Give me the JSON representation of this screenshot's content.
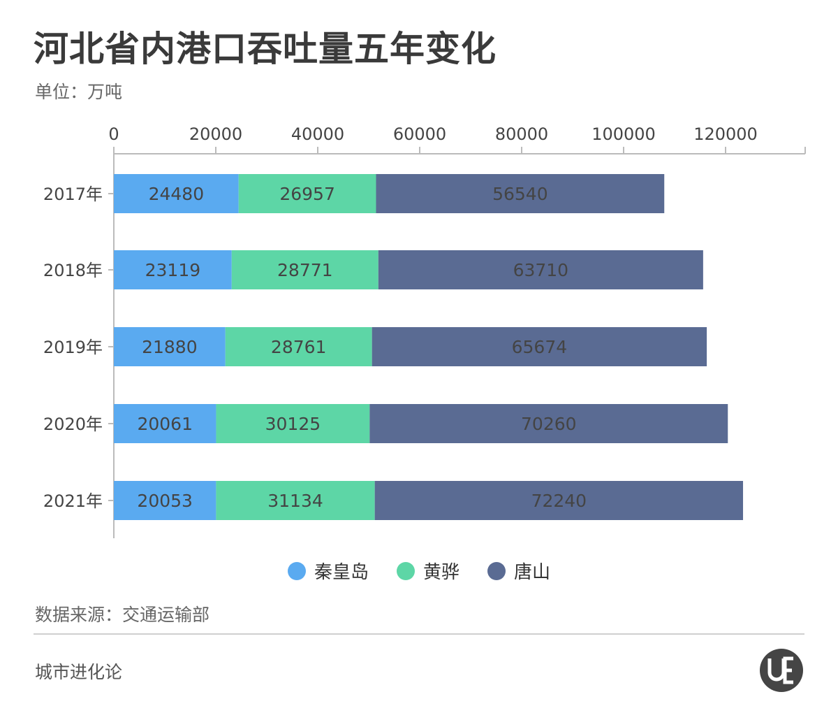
{
  "title": "河北省内港口吞吐量五年变化",
  "unit": "单位：万吨",
  "source": "数据来源：交通运输部",
  "brand": "城市进化论",
  "logo_text": "UE",
  "colors": {
    "qinhuangdao": "#5aaaf0",
    "huanghua": "#5dd6a6",
    "tangshan": "#5a6b93"
  },
  "chart_data": {
    "type": "bar",
    "orientation": "horizontal",
    "stacked": true,
    "categories": [
      "2017年",
      "2018年",
      "2019年",
      "2020年",
      "2021年"
    ],
    "series": [
      {
        "name": "秦皇岛",
        "values": [
          24480,
          23119,
          21880,
          20061,
          20053
        ]
      },
      {
        "name": "黄骅",
        "values": [
          26957,
          28771,
          28761,
          30125,
          31134
        ]
      },
      {
        "name": "唐山",
        "values": [
          56540,
          63710,
          65674,
          70260,
          72240
        ]
      }
    ],
    "xticks": [
      "0",
      "20000",
      "40000",
      "60000",
      "80000",
      "100000",
      "120000"
    ],
    "xlim": [
      0,
      130000
    ],
    "axis_position": "top",
    "grid": false,
    "legend_position": "bottom"
  }
}
